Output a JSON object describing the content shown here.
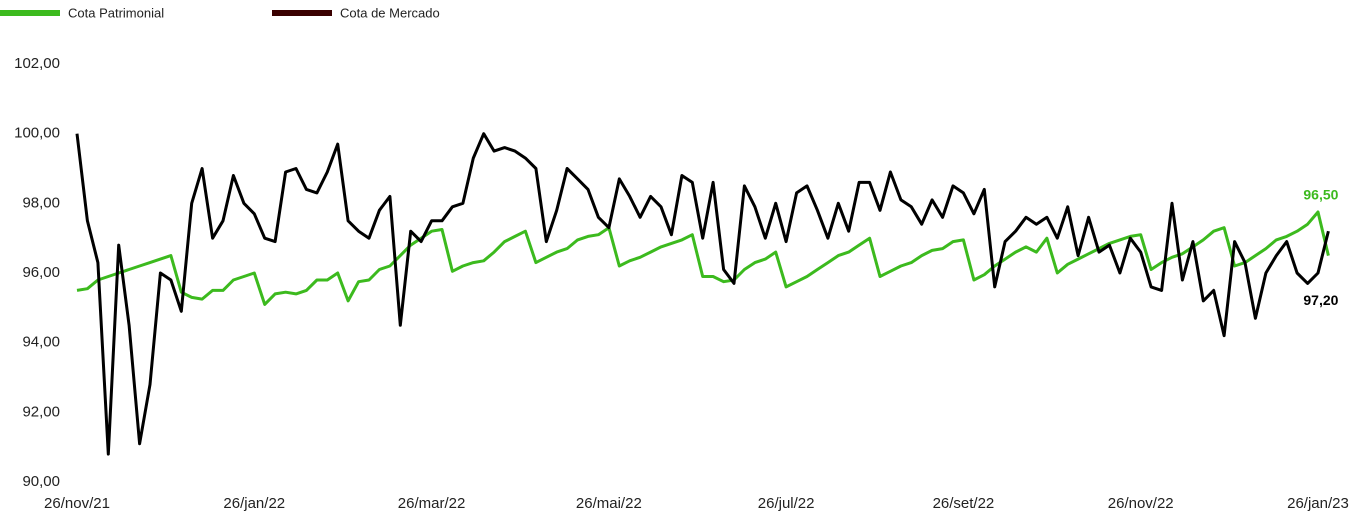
{
  "chart_data": {
    "type": "line",
    "categories": [
      "26/nov/21",
      null,
      null,
      null,
      null,
      null,
      null,
      null,
      null,
      null,
      null,
      null,
      null,
      null,
      null,
      null,
      null,
      "26/jan/22",
      null,
      null,
      null,
      null,
      null,
      null,
      null,
      null,
      null,
      null,
      null,
      null,
      null,
      null,
      null,
      null,
      "26/mar/22",
      null,
      null,
      null,
      null,
      null,
      null,
      null,
      null,
      null,
      null,
      null,
      null,
      null,
      null,
      null,
      null,
      "26/mai/22",
      null,
      null,
      null,
      null,
      null,
      null,
      null,
      null,
      null,
      null,
      null,
      null,
      null,
      null,
      null,
      null,
      "26/jul/22",
      null,
      null,
      null,
      null,
      null,
      null,
      null,
      null,
      null,
      null,
      null,
      null,
      null,
      null,
      null,
      null,
      "26/set/22",
      null,
      null,
      null,
      null,
      null,
      null,
      null,
      null,
      null,
      null,
      null,
      null,
      null,
      null,
      null,
      null,
      "26/nov/22",
      null,
      null,
      null,
      null,
      null,
      null,
      null,
      null,
      null,
      null,
      null,
      null,
      null,
      null,
      null,
      null,
      "26/jan/23",
      null
    ],
    "series": [
      {
        "name": "Cota Patrimonial",
        "color": "#3cba1e",
        "values": [
          95.5,
          95.55,
          95.8,
          95.9,
          96.0,
          96.1,
          96.2,
          96.3,
          96.4,
          96.5,
          95.45,
          95.3,
          95.25,
          95.5,
          95.5,
          95.8,
          95.9,
          96.0,
          95.1,
          95.4,
          95.45,
          95.4,
          95.5,
          95.8,
          95.8,
          96.0,
          95.2,
          95.75,
          95.8,
          96.1,
          96.2,
          96.5,
          96.8,
          97.0,
          97.2,
          97.25,
          96.05,
          96.2,
          96.3,
          96.35,
          96.6,
          96.9,
          97.05,
          97.2,
          96.3,
          96.45,
          96.6,
          96.7,
          96.95,
          97.05,
          97.1,
          97.3,
          96.2,
          96.35,
          96.45,
          96.6,
          96.75,
          96.85,
          96.95,
          97.1,
          95.9,
          95.9,
          95.75,
          95.8,
          96.1,
          96.3,
          96.4,
          96.6,
          95.6,
          95.75,
          95.9,
          96.1,
          96.3,
          96.5,
          96.6,
          96.8,
          97.0,
          95.9,
          96.05,
          96.2,
          96.3,
          96.5,
          96.65,
          96.7,
          96.9,
          96.95,
          95.8,
          95.95,
          96.2,
          96.4,
          96.6,
          96.75,
          96.6,
          97.0,
          96.0,
          96.25,
          96.4,
          96.55,
          96.7,
          96.85,
          96.95,
          97.05,
          97.1,
          96.1,
          96.3,
          96.45,
          96.55,
          96.75,
          96.95,
          97.2,
          97.3,
          96.2,
          96.3,
          96.5,
          96.7,
          96.95,
          97.05,
          97.2,
          97.4,
          97.75,
          96.5
        ],
        "value_labels": [
          null,
          null,
          null,
          null,
          null,
          null,
          null,
          null,
          null,
          null,
          null,
          null,
          null,
          null,
          null,
          null,
          null,
          null,
          null,
          null,
          null,
          null,
          null,
          null,
          null,
          null,
          null,
          null,
          null,
          null,
          null,
          null,
          null,
          null,
          null,
          null,
          null,
          null,
          null,
          null,
          null,
          null,
          null,
          null,
          null,
          null,
          null,
          null,
          null,
          null,
          null,
          null,
          null,
          null,
          null,
          null,
          null,
          null,
          null,
          null,
          null,
          null,
          null,
          null,
          null,
          null,
          null,
          null,
          null,
          null,
          null,
          null,
          null,
          null,
          null,
          null,
          null,
          null,
          null,
          null,
          null,
          null,
          null,
          null,
          null,
          null,
          null,
          null,
          null,
          null,
          null,
          null,
          null,
          null,
          null,
          null,
          null,
          null,
          null,
          null,
          null,
          null,
          null,
          null,
          null,
          null,
          null,
          null,
          null,
          null,
          null,
          null,
          null,
          null,
          null,
          null,
          null,
          null,
          null,
          null,
          "96,50"
        ]
      },
      {
        "name": "Cota de Mercado",
        "color": "#000000",
        "legend_color": "#3a0000",
        "values": [
          100.0,
          97.5,
          96.3,
          90.8,
          96.8,
          94.5,
          91.1,
          92.8,
          96.0,
          95.8,
          94.9,
          98.0,
          99.0,
          97.0,
          97.5,
          98.8,
          98.0,
          97.7,
          97.0,
          96.9,
          98.9,
          99.0,
          98.4,
          98.3,
          98.9,
          99.7,
          97.5,
          97.2,
          97.0,
          97.8,
          98.2,
          94.5,
          97.2,
          96.9,
          97.5,
          97.5,
          97.9,
          98.0,
          99.3,
          100.0,
          99.5,
          99.6,
          99.5,
          99.3,
          99.0,
          96.9,
          97.8,
          99.0,
          98.7,
          98.4,
          97.6,
          97.3,
          98.7,
          98.2,
          97.6,
          98.2,
          97.9,
          97.1,
          98.8,
          98.6,
          97.0,
          98.6,
          96.1,
          95.7,
          98.5,
          97.9,
          97.0,
          98.0,
          96.9,
          98.3,
          98.5,
          97.8,
          97.0,
          98.0,
          97.2,
          98.6,
          98.6,
          97.8,
          98.9,
          98.1,
          97.9,
          97.4,
          98.1,
          97.6,
          98.5,
          98.3,
          97.7,
          98.4,
          95.6,
          96.9,
          97.2,
          97.6,
          97.4,
          97.6,
          97.0,
          97.9,
          96.5,
          97.6,
          96.6,
          96.8,
          96.0,
          97.0,
          96.6,
          95.6,
          95.5,
          98.0,
          95.8,
          96.9,
          95.2,
          95.5,
          94.2,
          96.9,
          96.3,
          94.7,
          96.0,
          96.5,
          96.9,
          96.0,
          95.7,
          96.0,
          97.2
        ],
        "value_labels": [
          null,
          null,
          null,
          null,
          null,
          null,
          null,
          null,
          null,
          null,
          null,
          null,
          null,
          null,
          null,
          null,
          null,
          null,
          null,
          null,
          null,
          null,
          null,
          null,
          null,
          null,
          null,
          null,
          null,
          null,
          null,
          null,
          null,
          null,
          null,
          null,
          null,
          null,
          null,
          null,
          null,
          null,
          null,
          null,
          null,
          null,
          null,
          null,
          null,
          null,
          null,
          null,
          null,
          null,
          null,
          null,
          null,
          null,
          null,
          null,
          null,
          null,
          null,
          null,
          null,
          null,
          null,
          null,
          null,
          null,
          null,
          null,
          null,
          null,
          null,
          null,
          null,
          null,
          null,
          null,
          null,
          null,
          null,
          null,
          null,
          null,
          null,
          null,
          null,
          null,
          null,
          null,
          null,
          null,
          null,
          null,
          null,
          null,
          null,
          null,
          null,
          null,
          null,
          null,
          null,
          null,
          null,
          null,
          null,
          null,
          null,
          null,
          null,
          null,
          null,
          null,
          null,
          null,
          null,
          null,
          "97,20"
        ]
      }
    ],
    "ylim": [
      90,
      102
    ],
    "yticks": [
      {
        "value": 90,
        "label": "90,00"
      },
      {
        "value": 92,
        "label": "92,00"
      },
      {
        "value": 94,
        "label": "94,00"
      },
      {
        "value": 96,
        "label": "96,00"
      },
      {
        "value": 98,
        "label": "98,00"
      },
      {
        "value": 100,
        "label": "100,00"
      },
      {
        "value": 102,
        "label": "102,00"
      }
    ],
    "grid": false,
    "legend": "top-left"
  }
}
